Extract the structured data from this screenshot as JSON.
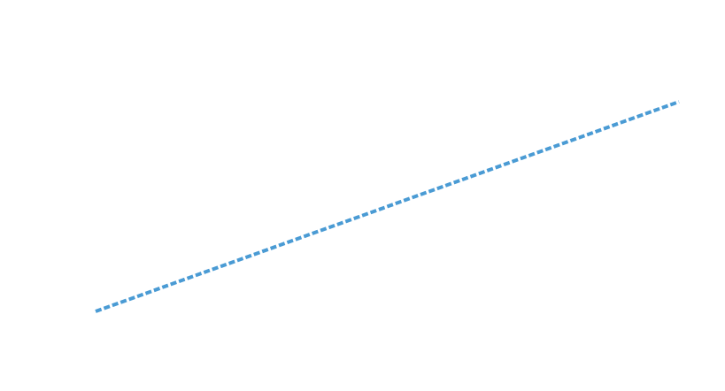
{
  "canvas": {
    "background": "#ffffff"
  },
  "line": {
    "color": "#4a9bd4",
    "style": "dashed"
  }
}
